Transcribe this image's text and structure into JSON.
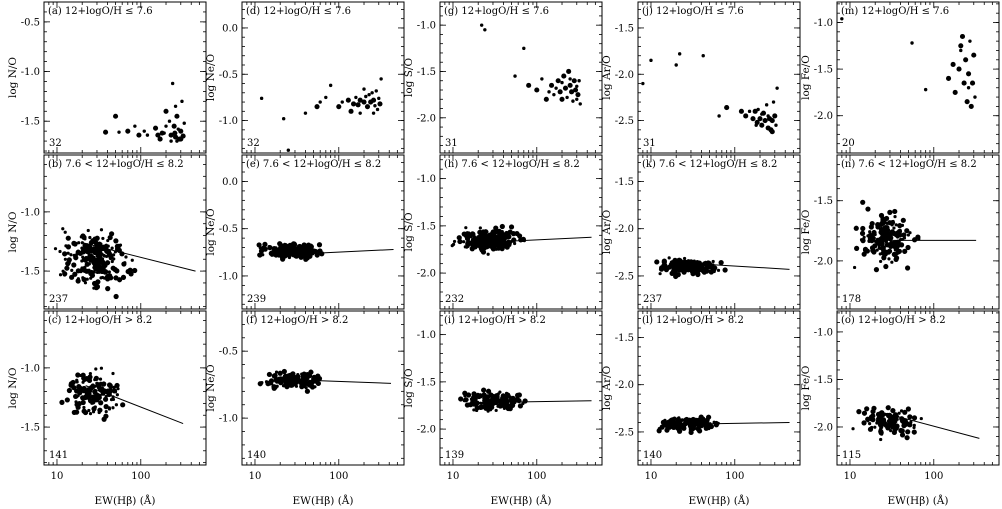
{
  "figure": {
    "x_axis_label": "EW(Hβ) (Å)",
    "x_tick_labels": [
      "10",
      "100"
    ],
    "row_labels": [
      "12+logO/H ≤ 7.6",
      "7.6 < 12+logO/H ≤ 8.2",
      "12+logO/H > 8.2"
    ]
  },
  "chart_data": [
    {
      "id": "a",
      "type": "scatter",
      "panel_label": "(a)",
      "condition": "12+logO/H ≤ 7.6",
      "ylabel": "log N/O",
      "yticks": [
        "-0.5",
        "-1.0",
        "-1.5"
      ],
      "yvals": [
        -0.5,
        -1.0,
        -1.5
      ],
      "ylim": [
        -1.82,
        -0.3
      ],
      "xscale": "log",
      "xlim": [
        7,
        600
      ],
      "count": "32",
      "points": [
        [
          38,
          -1.61,
          3
        ],
        [
          50,
          -1.45,
          3
        ],
        [
          55,
          -1.61,
          2
        ],
        [
          70,
          -1.6,
          3
        ],
        [
          85,
          -1.55,
          2
        ],
        [
          95,
          -1.64,
          3
        ],
        [
          110,
          -1.6,
          2
        ],
        [
          120,
          -1.64,
          2
        ],
        [
          150,
          -1.57,
          3
        ],
        [
          160,
          -1.64,
          3
        ],
        [
          170,
          -1.68,
          3
        ],
        [
          180,
          -1.62,
          3
        ],
        [
          200,
          -1.4,
          3
        ],
        [
          220,
          -1.5,
          2
        ],
        [
          230,
          -1.64,
          3
        ],
        [
          240,
          -1.12,
          2
        ],
        [
          250,
          -1.55,
          3
        ],
        [
          255,
          -1.62,
          3
        ],
        [
          260,
          -1.66,
          3
        ],
        [
          270,
          -1.45,
          3
        ],
        [
          280,
          -1.58,
          2
        ],
        [
          290,
          -1.68,
          3
        ],
        [
          300,
          -1.6,
          3
        ],
        [
          310,
          -1.3,
          2
        ],
        [
          320,
          -1.65,
          3
        ],
        [
          330,
          -1.52,
          2
        ],
        [
          300,
          -1.68,
          3
        ],
        [
          270,
          -1.7,
          2
        ],
        [
          230,
          -1.7,
          2
        ],
        [
          200,
          -1.55,
          2
        ],
        [
          260,
          -1.35,
          2
        ],
        [
          190,
          -1.62,
          2
        ]
      ]
    },
    {
      "id": "b",
      "type": "scatter",
      "panel_label": "(b)",
      "condition": "7.6 < 12+logO/H ≤ 8.2",
      "ylabel": "log N/O",
      "yticks": [
        "-1.0",
        "-1.5"
      ],
      "yvals": [
        -1.0,
        -1.5
      ],
      "ylim": [
        -1.82,
        -0.52
      ],
      "xscale": "log",
      "xlim": [
        7,
        600
      ],
      "count": "237",
      "fit": [
        [
          20,
          -1.26
        ],
        [
          450,
          -1.5
        ]
      ]
    },
    {
      "id": "c",
      "type": "scatter",
      "panel_label": "(c)",
      "condition": "12+logO/H > 8.2",
      "ylabel": "log N/O",
      "yticks": [
        "-1.0",
        "-1.5"
      ],
      "yvals": [
        -1.0,
        -1.5
      ],
      "ylim": [
        -1.82,
        -0.52
      ],
      "xscale": "log",
      "xlim": [
        7,
        600
      ],
      "count": "141",
      "fit": [
        [
          22,
          -1.15
        ],
        [
          320,
          -1.47
        ]
      ]
    },
    {
      "id": "d",
      "type": "scatter",
      "panel_label": "(d)",
      "condition": "12+logO/H ≤ 7.6",
      "ylabel": "log Ne/O",
      "yticks": [
        "0.0",
        "-0.5",
        "-1.0"
      ],
      "yvals": [
        0.0,
        -0.5,
        -1.0
      ],
      "ylim": [
        -1.35,
        0.28
      ],
      "xscale": "log",
      "xlim": [
        7,
        600
      ],
      "count": "32",
      "points": [
        [
          12,
          -0.76,
          2
        ],
        [
          22,
          -0.98,
          2
        ],
        [
          25,
          -1.32,
          2
        ],
        [
          40,
          -0.92,
          2
        ],
        [
          55,
          -0.85,
          3
        ],
        [
          60,
          -0.8,
          2
        ],
        [
          70,
          -0.75,
          2
        ],
        [
          80,
          -0.62,
          2
        ],
        [
          100,
          -0.85,
          3
        ],
        [
          110,
          -0.8,
          2
        ],
        [
          130,
          -0.78,
          3
        ],
        [
          150,
          -0.82,
          3
        ],
        [
          160,
          -0.75,
          2
        ],
        [
          170,
          -0.83,
          3
        ],
        [
          180,
          -0.78,
          3
        ],
        [
          200,
          -0.8,
          3
        ],
        [
          210,
          -0.74,
          2
        ],
        [
          220,
          -0.85,
          3
        ],
        [
          230,
          -0.72,
          2
        ],
        [
          240,
          -0.8,
          3
        ],
        [
          250,
          -0.7,
          2
        ],
        [
          260,
          -0.78,
          3
        ],
        [
          270,
          -0.84,
          2
        ],
        [
          280,
          -0.68,
          2
        ],
        [
          300,
          -0.76,
          2
        ],
        [
          320,
          -0.55,
          2
        ],
        [
          310,
          -0.82,
          3
        ],
        [
          290,
          -0.88,
          2
        ],
        [
          200,
          -0.66,
          2
        ],
        [
          140,
          -0.9,
          3
        ],
        [
          180,
          -0.92,
          2
        ],
        [
          260,
          -0.92,
          2
        ]
      ]
    },
    {
      "id": "e",
      "type": "scatter",
      "panel_label": "(e)",
      "condition": "7.6 < 12+logO/H ≤ 8.2",
      "ylabel": "log Ne/O",
      "yticks": [
        "0.0",
        "-0.5",
        "-1.0"
      ],
      "yvals": [
        0.0,
        -0.5,
        -1.0
      ],
      "ylim": [
        -1.35,
        0.28
      ],
      "xscale": "log",
      "xlim": [
        7,
        600
      ],
      "count": "239",
      "fit": [
        [
          18,
          -0.78
        ],
        [
          450,
          -0.72
        ]
      ]
    },
    {
      "id": "f",
      "type": "scatter",
      "panel_label": "(f)",
      "condition": "12+logO/H > 8.2",
      "ylabel": "log Ne/O",
      "yticks": [
        "-0.5",
        "-1.0"
      ],
      "yvals": [
        -0.5,
        -1.0
      ],
      "ylim": [
        -1.35,
        -0.2
      ],
      "xscale": "log",
      "xlim": [
        7,
        600
      ],
      "count": "140",
      "fit": [
        [
          20,
          -0.71
        ],
        [
          420,
          -0.74
        ]
      ]
    },
    {
      "id": "g",
      "type": "scatter",
      "panel_label": "(g)",
      "condition": "12+logO/H ≤ 7.6",
      "ylabel": "log S/O",
      "yticks": [
        "-1.0",
        "-1.5",
        "-2.0"
      ],
      "yvals": [
        -1.0,
        -1.5,
        -2.0
      ],
      "ylim": [
        -2.38,
        -0.75
      ],
      "xscale": "log",
      "xlim": [
        7,
        600
      ],
      "count": "31",
      "points": [
        [
          22,
          -1.0,
          2
        ],
        [
          24,
          -1.05,
          2
        ],
        [
          55,
          -1.55,
          2
        ],
        [
          70,
          -1.25,
          2
        ],
        [
          80,
          -1.65,
          3
        ],
        [
          100,
          -1.7,
          3
        ],
        [
          115,
          -1.58,
          2
        ],
        [
          130,
          -1.8,
          3
        ],
        [
          150,
          -1.65,
          3
        ],
        [
          160,
          -1.75,
          2
        ],
        [
          180,
          -1.6,
          3
        ],
        [
          190,
          -1.72,
          3
        ],
        [
          200,
          -1.8,
          3
        ],
        [
          210,
          -1.55,
          3
        ],
        [
          220,
          -1.68,
          3
        ],
        [
          230,
          -1.78,
          2
        ],
        [
          240,
          -1.5,
          3
        ],
        [
          250,
          -1.65,
          3
        ],
        [
          260,
          -1.72,
          3
        ],
        [
          270,
          -1.82,
          2
        ],
        [
          280,
          -1.6,
          3
        ],
        [
          290,
          -1.7,
          3
        ],
        [
          300,
          -1.66,
          2
        ],
        [
          310,
          -1.75,
          3
        ],
        [
          320,
          -1.6,
          2
        ],
        [
          330,
          -1.85,
          2
        ],
        [
          250,
          -1.58,
          2
        ],
        [
          200,
          -1.62,
          2
        ],
        [
          170,
          -1.68,
          2
        ],
        [
          140,
          -1.72,
          2
        ],
        [
          300,
          -1.8,
          2
        ]
      ]
    },
    {
      "id": "h",
      "type": "scatter",
      "panel_label": "(h)",
      "condition": "7.6 < 12+logO/H ≤ 8.2",
      "ylabel": "log S/O",
      "yticks": [
        "-1.0",
        "-1.5",
        "-2.0"
      ],
      "yvals": [
        -1.0,
        -1.5,
        -2.0
      ],
      "ylim": [
        -2.38,
        -0.75
      ],
      "xscale": "log",
      "xlim": [
        7,
        600
      ],
      "count": "232",
      "fit": [
        [
          18,
          -1.68
        ],
        [
          450,
          -1.62
        ]
      ]
    },
    {
      "id": "i",
      "type": "scatter",
      "panel_label": "(i)",
      "condition": "12+logO/H > 8.2",
      "ylabel": "log S/O",
      "yticks": [
        "-1.0",
        "-1.5",
        "-2.0"
      ],
      "yvals": [
        -1.0,
        -1.5,
        -2.0
      ],
      "ylim": [
        -2.38,
        -0.75
      ],
      "xscale": "log",
      "xlim": [
        7,
        600
      ],
      "count": "139",
      "fit": [
        [
          20,
          -1.72
        ],
        [
          450,
          -1.7
        ]
      ]
    },
    {
      "id": "j",
      "type": "scatter",
      "panel_label": "(j)",
      "condition": "12+logO/H ≤ 7.6",
      "ylabel": "log Ar/O",
      "yticks": [
        "-1.5",
        "-2.0",
        "-2.5"
      ],
      "yvals": [
        -1.5,
        -2.0,
        -2.5
      ],
      "ylim": [
        -2.85,
        -1.22
      ],
      "xscale": "log",
      "xlim": [
        7,
        600
      ],
      "count": "31",
      "points": [
        [
          8,
          -2.1,
          2
        ],
        [
          10,
          -1.85,
          2
        ],
        [
          20,
          -1.9,
          2
        ],
        [
          22,
          -1.78,
          2
        ],
        [
          42,
          -1.8,
          2
        ],
        [
          65,
          -2.45,
          2
        ],
        [
          80,
          -2.36,
          3
        ],
        [
          120,
          -2.4,
          3
        ],
        [
          135,
          -2.45,
          3
        ],
        [
          150,
          -2.4,
          2
        ],
        [
          165,
          -2.48,
          3
        ],
        [
          175,
          -2.4,
          3
        ],
        [
          185,
          -2.52,
          3
        ],
        [
          190,
          -2.38,
          2
        ],
        [
          200,
          -2.48,
          3
        ],
        [
          210,
          -2.55,
          3
        ],
        [
          220,
          -2.42,
          3
        ],
        [
          230,
          -2.5,
          3
        ],
        [
          240,
          -2.33,
          2
        ],
        [
          250,
          -2.58,
          3
        ],
        [
          260,
          -2.48,
          3
        ],
        [
          270,
          -2.6,
          3
        ],
        [
          280,
          -2.5,
          3
        ],
        [
          290,
          -2.3,
          2
        ],
        [
          300,
          -2.45,
          3
        ],
        [
          310,
          -2.55,
          2
        ],
        [
          320,
          -2.15,
          2
        ],
        [
          280,
          -2.62,
          3
        ],
        [
          250,
          -2.45,
          2
        ],
        [
          210,
          -2.43,
          2
        ],
        [
          180,
          -2.55,
          2
        ]
      ]
    },
    {
      "id": "k",
      "type": "scatter",
      "panel_label": "(k)",
      "condition": "7.6 < 12+logO/H ≤ 8.2",
      "ylabel": "log Ar/O",
      "yticks": [
        "-1.5",
        "-2.0",
        "-2.5"
      ],
      "yvals": [
        -1.5,
        -2.0,
        -2.5
      ],
      "ylim": [
        -2.85,
        -1.22
      ],
      "xscale": "log",
      "xlim": [
        7,
        600
      ],
      "count": "237",
      "fit": [
        [
          22,
          -2.36
        ],
        [
          450,
          -2.43
        ]
      ]
    },
    {
      "id": "l",
      "type": "scatter",
      "panel_label": "(l)",
      "condition": "12+logO/H > 8.2",
      "ylabel": "log Ar/O",
      "yticks": [
        "-1.5",
        "-2.0",
        "-2.5"
      ],
      "yvals": [
        -1.5,
        -2.0,
        -2.5
      ],
      "ylim": [
        -2.85,
        -1.22
      ],
      "xscale": "log",
      "xlim": [
        7,
        600
      ],
      "count": "140",
      "fit": [
        [
          20,
          -2.42
        ],
        [
          450,
          -2.4
        ]
      ]
    },
    {
      "id": "m",
      "type": "scatter",
      "panel_label": "(m)",
      "condition": "12+logO/H ≤ 7.6",
      "ylabel": "log Fe/O",
      "yticks": [
        "-1.0",
        "-1.5",
        "-2.0"
      ],
      "yvals": [
        -1.0,
        -1.5,
        -2.0
      ],
      "ylim": [
        -2.4,
        -0.78
      ],
      "xscale": "log",
      "xlim": [
        7,
        600
      ],
      "count": "20",
      "points": [
        [
          8,
          -0.96,
          2
        ],
        [
          55,
          -1.22,
          2
        ],
        [
          80,
          -1.72,
          2
        ],
        [
          150,
          -1.6,
          3
        ],
        [
          170,
          -1.45,
          3
        ],
        [
          180,
          -1.75,
          3
        ],
        [
          200,
          -1.5,
          3
        ],
        [
          210,
          -1.3,
          2
        ],
        [
          220,
          -1.15,
          3
        ],
        [
          230,
          -1.65,
          3
        ],
        [
          240,
          -1.4,
          3
        ],
        [
          250,
          -1.85,
          3
        ],
        [
          260,
          -1.55,
          3
        ],
        [
          270,
          -1.2,
          2
        ],
        [
          280,
          -1.9,
          3
        ],
        [
          290,
          -1.65,
          3
        ],
        [
          300,
          -1.35,
          3
        ],
        [
          310,
          -1.8,
          2
        ],
        [
          210,
          -1.25,
          3
        ],
        [
          260,
          -1.7,
          2
        ]
      ]
    },
    {
      "id": "n",
      "type": "scatter",
      "panel_label": "(n)",
      "condition": "7.6 < 12+logO/H ≤ 8.2",
      "ylabel": "log Fe/O",
      "yticks": [
        "-1.5",
        "-2.0"
      ],
      "yvals": [
        -1.5,
        -2.0
      ],
      "ylim": [
        -2.4,
        -1.12
      ],
      "xscale": "log",
      "xlim": [
        7,
        600
      ],
      "count": "178",
      "fit": [
        [
          22,
          -1.83
        ],
        [
          320,
          -1.83
        ]
      ]
    },
    {
      "id": "o",
      "type": "scatter",
      "panel_label": "(o)",
      "condition": "12+logO/H > 8.2",
      "ylabel": "log Fe/O",
      "yticks": [
        "-1.0",
        "-1.5",
        "-2.0"
      ],
      "yvals": [
        -1.0,
        -1.5,
        -2.0
      ],
      "ylim": [
        -2.4,
        -0.78
      ],
      "xscale": "log",
      "xlim": [
        7,
        600
      ],
      "count": "115",
      "fit": [
        [
          25,
          -1.85
        ],
        [
          350,
          -2.12
        ]
      ]
    }
  ]
}
